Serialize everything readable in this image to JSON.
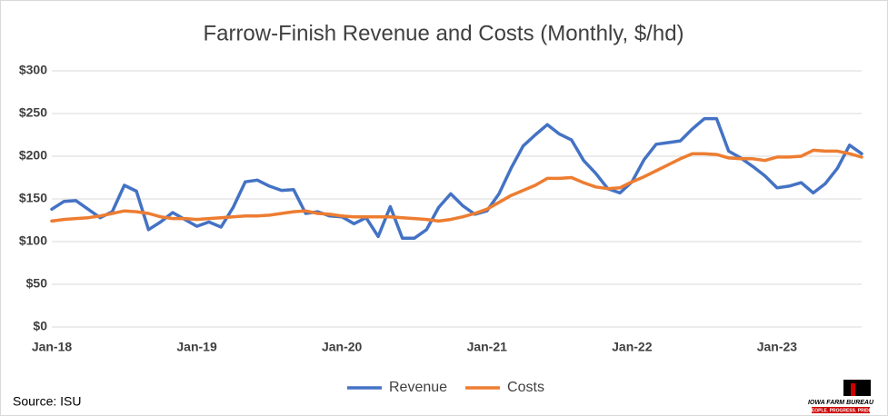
{
  "chart_data": {
    "type": "line",
    "title": "Farrow-Finish Revenue and Costs (Monthly, $/hd)",
    "categories": [
      "Jan-18",
      null,
      null,
      null,
      null,
      null,
      null,
      null,
      null,
      null,
      null,
      null,
      "Jan-19",
      null,
      null,
      null,
      null,
      null,
      null,
      null,
      null,
      null,
      null,
      null,
      "Jan-20",
      null,
      null,
      null,
      null,
      null,
      null,
      null,
      null,
      null,
      null,
      null,
      "Jan-21",
      null,
      null,
      null,
      null,
      null,
      null,
      null,
      null,
      null,
      null,
      null,
      "Jan-22",
      null,
      null,
      null,
      null,
      null,
      null,
      null,
      null,
      null,
      null,
      null,
      "Jan-23",
      null,
      null,
      null,
      null,
      null,
      null,
      null
    ],
    "series": [
      {
        "name": "Revenue",
        "color": "#4472c4",
        "values": [
          138,
          147,
          148,
          138,
          128,
          135,
          166,
          159,
          114,
          123,
          134,
          126,
          118,
          123,
          117,
          140,
          170,
          172,
          165,
          160,
          161,
          133,
          135,
          130,
          129,
          121,
          128,
          106,
          141,
          104,
          104,
          114,
          140,
          156,
          142,
          132,
          136,
          156,
          186,
          212,
          225,
          237,
          226,
          219,
          195,
          180,
          162,
          157,
          170,
          196,
          214,
          216,
          218,
          232,
          244,
          244,
          206,
          198,
          188,
          177,
          163,
          165,
          169,
          157,
          168,
          186,
          213,
          203
        ]
      },
      {
        "name": "Costs",
        "color": "#ed7d31",
        "values": [
          124,
          126,
          127,
          128,
          130,
          133,
          136,
          135,
          133,
          129,
          127,
          127,
          126,
          127,
          128,
          129,
          130,
          130,
          131,
          133,
          135,
          136,
          133,
          132,
          130,
          129,
          129,
          129,
          129,
          128,
          127,
          126,
          124,
          126,
          129,
          133,
          138,
          146,
          154,
          160,
          166,
          174,
          174,
          175,
          169,
          164,
          162,
          163,
          170,
          176,
          183,
          190,
          197,
          203,
          203,
          202,
          198,
          197,
          197,
          195,
          199,
          199,
          200,
          207,
          206,
          206,
          203,
          199
        ]
      }
    ],
    "ylim": [
      0,
      300
    ],
    "yticks": [
      {
        "value": 0,
        "label": "$0"
      },
      {
        "value": 50,
        "label": "$50"
      },
      {
        "value": 100,
        "label": "$100"
      },
      {
        "value": 150,
        "label": "$150"
      },
      {
        "value": 200,
        "label": "$200"
      },
      {
        "value": 250,
        "label": "$250"
      },
      {
        "value": 300,
        "label": "$300"
      }
    ],
    "grid": true,
    "legend": "bottom",
    "source": "Source: ISU",
    "logo": {
      "name": "IOWA FARM BUREAU",
      "tagline": "PEOPLE. PROGRESS. PRIDE."
    }
  }
}
